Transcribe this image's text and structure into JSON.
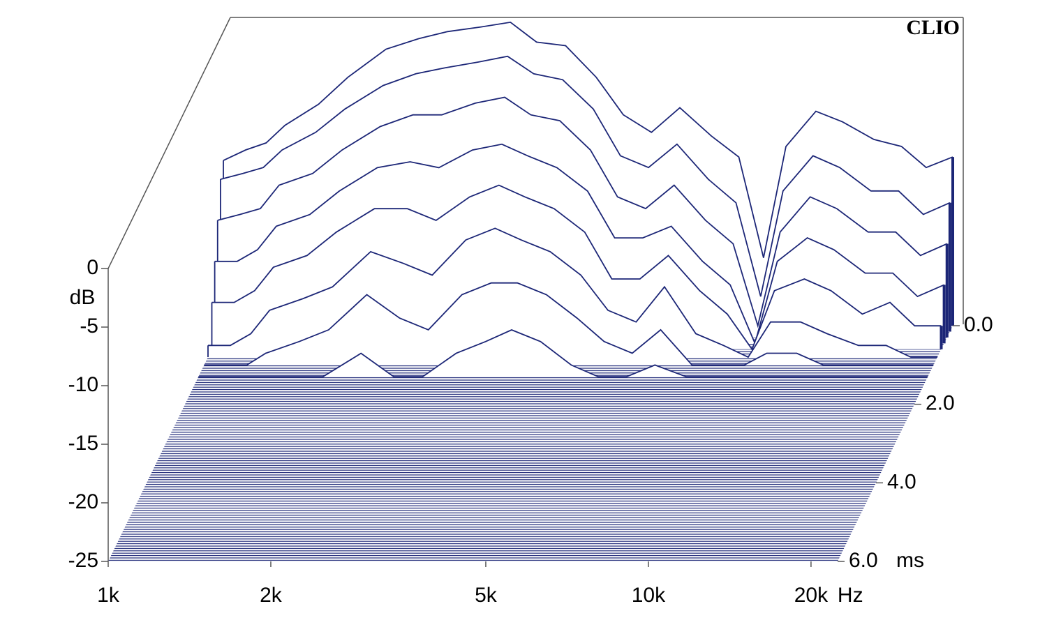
{
  "chart_data": {
    "type": "waterfall",
    "watermark": "CLIO",
    "y_label": "dB",
    "x_unit": "Hz",
    "z_unit": "ms",
    "color": "#1c2677",
    "log_x": true,
    "x": [
      1000,
      1100,
      1200,
      1300,
      1500,
      1700,
      2000,
      2300,
      2600,
      3000,
      3400,
      3800,
      4300,
      4900,
      5500,
      6200,
      7000,
      8000,
      9000,
      10000,
      11000,
      12500,
      14000,
      16000,
      18000,
      20000,
      22400
    ],
    "xlim": [
      1000,
      22400
    ],
    "xticks": [
      {
        "value": 1000,
        "label": "1k"
      },
      {
        "value": 2000,
        "label": "2k"
      },
      {
        "value": 5000,
        "label": "5k"
      },
      {
        "value": 10000,
        "label": "10k"
      },
      {
        "value": 20000,
        "label": "20k"
      }
    ],
    "ylim": [
      -25,
      0
    ],
    "yticks": [
      0,
      -5,
      -10,
      -15,
      -20,
      -25
    ],
    "zlim": [
      0,
      6
    ],
    "zticks": [
      {
        "value": 0,
        "label": "0.0"
      },
      {
        "value": 2,
        "label": "2.0"
      },
      {
        "value": 4,
        "label": "4.0"
      },
      {
        "value": 6,
        "label": "6.0"
      }
    ],
    "slices": [
      {
        "t": 0,
        "values": [
          -10.9,
          -10,
          -9.4,
          -7.9,
          -6.1,
          -3.8,
          -1.4,
          -0.5,
          0.1,
          0.5,
          0.9,
          -0.8,
          -1.1,
          -3.8,
          -7,
          -8.5,
          -6.4,
          -8.8,
          -10.6,
          -19.2,
          -9.7,
          -6.7,
          -7.6,
          -9.1,
          -9.7,
          -11.5,
          -10.6
        ]
      },
      {
        "t": 0.15,
        "values": [
          -12,
          -11.5,
          -11,
          -9.5,
          -8,
          -6,
          -4,
          -3,
          -2.5,
          -2,
          -1.5,
          -3,
          -3.5,
          -6,
          -10,
          -11,
          -9,
          -12,
          -14,
          -22,
          -13,
          -10,
          -11,
          -13,
          -13,
          -15,
          -14
        ]
      },
      {
        "t": 0.3,
        "values": [
          -15,
          -14.5,
          -14,
          -12,
          -11,
          -9,
          -7,
          -6,
          -6,
          -5,
          -4.5,
          -6,
          -6.5,
          -9,
          -13,
          -14,
          -12,
          -15,
          -17,
          -24,
          -16,
          -13,
          -14,
          -16,
          -16,
          -18,
          -17
        ]
      },
      {
        "t": 0.45,
        "values": [
          -18,
          -18,
          -17,
          -15,
          -14,
          -12,
          -10,
          -9.5,
          -10,
          -8.5,
          -8,
          -9,
          -10,
          -12,
          -16,
          -16,
          -15,
          -18,
          -20,
          -25,
          -18,
          -16,
          -17,
          -19,
          -19,
          -21,
          -20
        ]
      },
      {
        "t": 0.6,
        "values": [
          -21,
          -21,
          -20,
          -18,
          -17,
          -15,
          -13,
          -13,
          -14,
          -12,
          -11,
          -12,
          -13,
          -15,
          -19,
          -19,
          -17,
          -20,
          -22,
          -25,
          -20,
          -19,
          -20,
          -22,
          -21,
          -23,
          -23
        ]
      },
      {
        "t": 0.8,
        "values": [
          -24,
          -24,
          -23,
          -21,
          -20,
          -19,
          -16,
          -17,
          -18,
          -15,
          -14,
          -15,
          -16,
          -18,
          -21,
          -22,
          -19,
          -23,
          -24,
          -25,
          -22,
          -22,
          -23,
          -24,
          -24,
          -25,
          -25
        ]
      },
      {
        "t": 1.0,
        "values": [
          -25,
          -25,
          -25,
          -24,
          -23,
          -22,
          -19,
          -21,
          -22,
          -19,
          -18,
          -18,
          -19,
          -21,
          -23,
          -24,
          -22,
          -25,
          -25,
          -25,
          -24,
          -24,
          -25,
          -25,
          -25,
          -25,
          -25
        ]
      },
      {
        "t": 1.3,
        "values": [
          -25,
          -25,
          -25,
          -25,
          -25,
          -25,
          -23,
          -25,
          -25,
          -23,
          -22,
          -21,
          -22,
          -24,
          -25,
          -25,
          -24,
          -25,
          -25,
          -25,
          -25,
          -25,
          -25,
          -25,
          -25,
          -25,
          -25
        ]
      }
    ]
  }
}
